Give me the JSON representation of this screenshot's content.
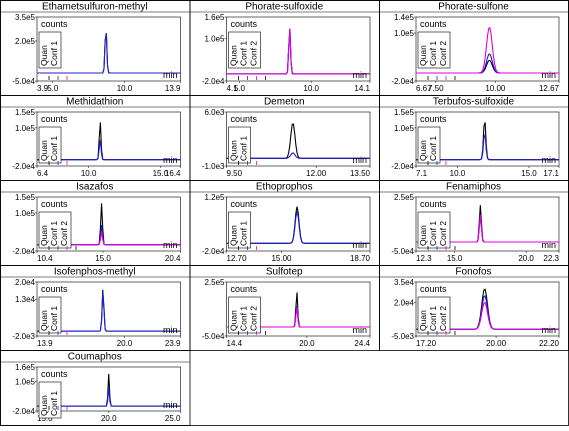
{
  "x_unit": "min",
  "y_unit": "counts",
  "trace_labels": [
    "Quan",
    "Conf 1",
    "Conf 2"
  ],
  "colors": {
    "quan": "#000000",
    "conf1": "#1f1fcc",
    "conf2": "#e000e0",
    "frame": "#000000"
  },
  "chart_data": [
    {
      "type": "line",
      "title": "Ethametsulfuron-methyl",
      "y_ticks": [
        "3.5e5",
        "2.0e5",
        "-5.0e4"
      ],
      "ylim": [
        -50000,
        350000
      ],
      "x_ticks": [
        "3.9",
        "5.0",
        "10.0",
        "13.9"
      ],
      "xlim": [
        3.9,
        13.9
      ],
      "n_traces": 2,
      "peak": {
        "rt": 8.7,
        "width": 0.06,
        "heights": [
          290000,
          290000
        ]
      }
    },
    {
      "type": "line",
      "title": "Phorate-sulfoxide",
      "y_ticks": [
        "1.6e5",
        "1.0e5",
        "-2.0e4"
      ],
      "ylim": [
        -20000,
        160000
      ],
      "x_ticks": [
        "4.1",
        "5.0",
        "10.0",
        "14.1"
      ],
      "xlim": [
        4.1,
        14.1
      ],
      "n_traces": 3,
      "peak": {
        "rt": 8.5,
        "width": 0.06,
        "heights": [
          132000,
          132000,
          132000
        ]
      }
    },
    {
      "type": "line",
      "title": "Phorate-sulfone",
      "y_ticks": [
        "1.4e5",
        "1.0e5",
        "-2.0e4"
      ],
      "ylim": [
        -20000,
        140000
      ],
      "x_ticks": [
        "6.67",
        "7.50",
        "10.00",
        "12.67"
      ],
      "xlim": [
        6.67,
        12.67
      ],
      "n_traces": 3,
      "peak": {
        "rt": 9.75,
        "width": 0.12,
        "heights": [
          32000,
          48000,
          115000
        ]
      }
    },
    {
      "type": "line",
      "title": "Methidathion",
      "y_ticks": [
        "1.5e5",
        "1.0e5",
        "-2.0e4"
      ],
      "ylim": [
        -20000,
        150000
      ],
      "x_ticks": [
        "6.4",
        "10.0",
        "15.0",
        "16.4"
      ],
      "xlim": [
        6.4,
        16.4
      ],
      "n_traces": 2,
      "peak": {
        "rt": 10.8,
        "width": 0.06,
        "heights": [
          122000,
          65000
        ]
      }
    },
    {
      "type": "line",
      "title": "Demeton",
      "y_ticks": [
        "6.0e3",
        "-1.0e3"
      ],
      "ylim": [
        -1000,
        6000
      ],
      "x_ticks": [
        "9.50",
        "12.00",
        "13.50"
      ],
      "xlim": [
        9.5,
        13.5
      ],
      "n_traces": 2,
      "peak": {
        "rt": 11.35,
        "width": 0.06,
        "heights": [
          4600,
          700
        ]
      }
    },
    {
      "type": "line",
      "title": "Terbufos-sulfoxide",
      "y_ticks": [
        "1.5e5",
        "1.0e5",
        "-2.0e4"
      ],
      "ylim": [
        -20000,
        150000
      ],
      "x_ticks": [
        "7.1",
        "10.0",
        "15.0",
        "17.1"
      ],
      "xlim": [
        7.1,
        17.1
      ],
      "n_traces": 2,
      "peak": {
        "rt": 11.9,
        "width": 0.08,
        "heights": [
          128000,
          85000
        ]
      }
    },
    {
      "type": "line",
      "title": "Isazafos",
      "y_ticks": [
        "1.5e5",
        "1.0e5",
        "-2.0e4"
      ],
      "ylim": [
        -20000,
        150000
      ],
      "x_ticks": [
        "10.4",
        "15.0",
        "20.4"
      ],
      "xlim": [
        10.4,
        20.4
      ],
      "n_traces": 3,
      "peak": {
        "rt": 14.9,
        "width": 0.06,
        "heights": [
          130000,
          62000,
          40000
        ]
      }
    },
    {
      "type": "line",
      "title": "Ethoprophos",
      "y_ticks": [
        "1.2e5",
        "-2.0e4"
      ],
      "ylim": [
        -20000,
        120000
      ],
      "x_ticks": [
        "12.70",
        "15.00",
        "18.70"
      ],
      "xlim": [
        12.7,
        18.7
      ],
      "n_traces": 2,
      "peak": {
        "rt": 15.65,
        "width": 0.08,
        "heights": [
          95000,
          82000
        ]
      }
    },
    {
      "type": "line",
      "title": "Fenamiphos",
      "y_ticks": [
        "2.5e5",
        "-5.0e4"
      ],
      "ylim": [
        -50000,
        250000
      ],
      "x_ticks": [
        "12.3",
        "15.0",
        "20.0",
        "22.3"
      ],
      "xlim": [
        12.3,
        22.3
      ],
      "n_traces": 3,
      "peak": {
        "rt": 16.8,
        "width": 0.07,
        "heights": [
          205000,
          150000,
          150000
        ]
      }
    },
    {
      "type": "line",
      "title": "Isofenphos-methyl",
      "y_ticks": [
        "2.0e4",
        "1.3e4",
        "-2.0e3"
      ],
      "ylim": [
        -2000,
        20000
      ],
      "x_ticks": [
        "13.9",
        "20.0",
        "23.9"
      ],
      "xlim": [
        13.9,
        23.9
      ],
      "n_traces": 2,
      "peak": {
        "rt": 18.5,
        "width": 0.06,
        "heights": [
          17500,
          16500
        ]
      }
    },
    {
      "type": "line",
      "title": "Sulfotep",
      "y_ticks": [
        "2.5e5",
        "-5.0e4"
      ],
      "ylim": [
        -50000,
        250000
      ],
      "x_ticks": [
        "14.4",
        "20.0",
        "24.4"
      ],
      "xlim": [
        14.4,
        24.4
      ],
      "n_traces": 3,
      "peak": {
        "rt": 19.3,
        "width": 0.06,
        "heights": [
          200000,
          120000,
          115000
        ]
      }
    },
    {
      "type": "line",
      "title": "Fonofos",
      "y_ticks": [
        "3.5e4",
        "2.0e4",
        "-5.0e3"
      ],
      "ylim": [
        -5000,
        35000
      ],
      "x_ticks": [
        "17.20",
        "20.00",
        "22.20"
      ],
      "xlim": [
        17.2,
        22.2
      ],
      "n_traces": 3,
      "peak": {
        "rt": 19.6,
        "width": 0.1,
        "heights": [
          30000,
          25000,
          20000
        ]
      }
    },
    {
      "type": "line",
      "title": "Coumaphos",
      "y_ticks": [
        "1.6e5",
        "1.0e5",
        "-2.0e4"
      ],
      "ylim": [
        -20000,
        160000
      ],
      "x_ticks": [
        "15.0",
        "20.0",
        "25.0"
      ],
      "xlim": [
        15.0,
        25.0
      ],
      "n_traces": 2,
      "peak": {
        "rt": 20.0,
        "width": 0.05,
        "heights": [
          132000,
          75000
        ]
      }
    }
  ]
}
